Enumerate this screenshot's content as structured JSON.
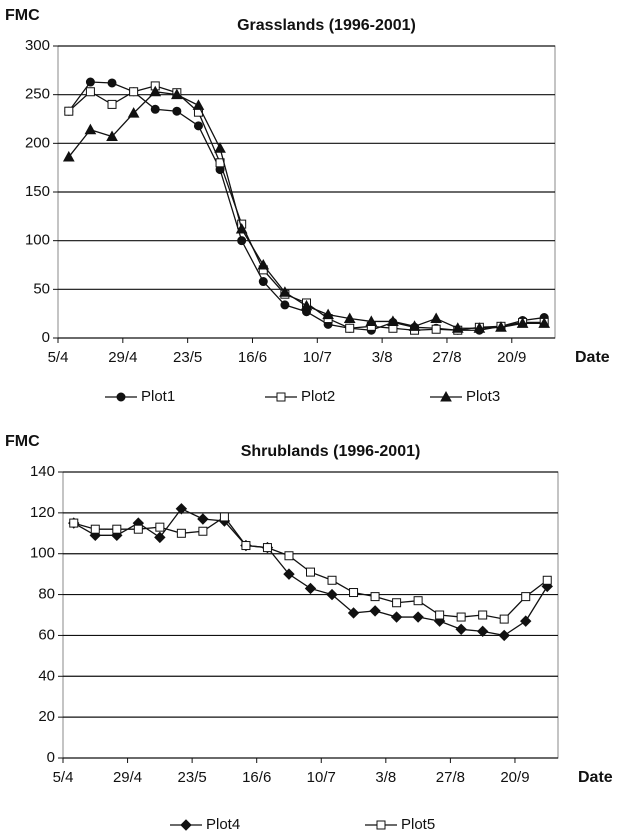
{
  "chart_data": [
    {
      "type": "line",
      "title": "Grasslands (1996-2001)",
      "y_label": "FMC",
      "x_label": "Date",
      "x": [
        4,
        12,
        20,
        28,
        36,
        44,
        52,
        60,
        68,
        76,
        84,
        92,
        100,
        108,
        116,
        124,
        132,
        140,
        148,
        156,
        164,
        172,
        180
      ],
      "xlim": [
        0,
        184
      ],
      "xticks": [
        {
          "value": 0,
          "label": "5/4"
        },
        {
          "value": 24,
          "label": "29/4"
        },
        {
          "value": 48,
          "label": "23/5"
        },
        {
          "value": 72,
          "label": "16/6"
        },
        {
          "value": 96,
          "label": "10/7"
        },
        {
          "value": 120,
          "label": "3/8"
        },
        {
          "value": 144,
          "label": "27/8"
        },
        {
          "value": 168,
          "label": "20/9"
        }
      ],
      "ylim": [
        0,
        300
      ],
      "yticks": [
        0,
        50,
        100,
        150,
        200,
        250,
        300
      ],
      "grid": true,
      "series": [
        {
          "name": "Plot1",
          "color": "#111111",
          "marker": "circle",
          "values": [
            233,
            263,
            262,
            253,
            235,
            233,
            218,
            173,
            100,
            58,
            34,
            27,
            14,
            10,
            8,
            16,
            11,
            10,
            8,
            8,
            12,
            18,
            21
          ]
        },
        {
          "name": "Plot2",
          "color": "#111111",
          "marker": "square",
          "values": [
            233,
            253,
            240,
            253,
            259,
            252,
            232,
            180,
            117,
            70,
            45,
            36,
            20,
            10,
            12,
            10,
            8,
            9,
            8,
            11,
            12,
            16,
            16
          ]
        },
        {
          "name": "Plot3",
          "color": "#111111",
          "marker": "triangle",
          "values": [
            186,
            214,
            207,
            231,
            253,
            250,
            239,
            195,
            112,
            75,
            47,
            33,
            24,
            20,
            17,
            17,
            12,
            20,
            10,
            10,
            11,
            15,
            15
          ]
        }
      ]
    },
    {
      "type": "line",
      "title": "Shrublands (1996-2001)",
      "y_label": "FMC",
      "x_label": "Date",
      "x": [
        4,
        12,
        20,
        28,
        36,
        44,
        52,
        60,
        68,
        76,
        84,
        92,
        100,
        108,
        116,
        124,
        132,
        140,
        148,
        156,
        164,
        172,
        180
      ],
      "xlim": [
        0,
        184
      ],
      "xticks": [
        {
          "value": 0,
          "label": "5/4"
        },
        {
          "value": 24,
          "label": "29/4"
        },
        {
          "value": 48,
          "label": "23/5"
        },
        {
          "value": 72,
          "label": "16/6"
        },
        {
          "value": 96,
          "label": "10/7"
        },
        {
          "value": 120,
          "label": "3/8"
        },
        {
          "value": 144,
          "label": "27/8"
        },
        {
          "value": 168,
          "label": "20/9"
        }
      ],
      "ylim": [
        0,
        140
      ],
      "yticks": [
        0,
        20,
        40,
        60,
        80,
        100,
        120,
        140
      ],
      "grid": true,
      "series": [
        {
          "name": "Plot4",
          "color": "#111111",
          "marker": "diamond",
          "values": [
            115,
            109,
            109,
            115,
            108,
            122,
            117,
            116,
            104,
            103,
            90,
            83,
            80,
            71,
            72,
            69,
            69,
            67,
            63,
            62,
            60,
            67,
            84
          ]
        },
        {
          "name": "Plot5",
          "color": "#111111",
          "marker": "square",
          "values": [
            115,
            112,
            112,
            112,
            113,
            110,
            111,
            118,
            104,
            103,
            99,
            91,
            87,
            81,
            79,
            76,
            77,
            70,
            69,
            70,
            68,
            79,
            87
          ]
        }
      ]
    }
  ]
}
